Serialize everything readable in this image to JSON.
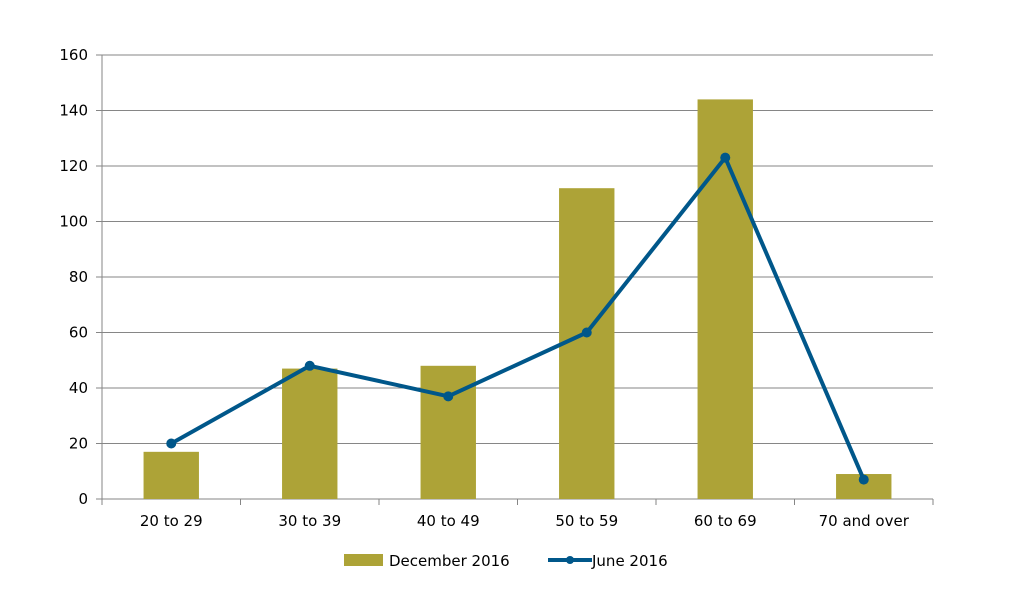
{
  "chart_data": {
    "type": "bar",
    "title": "",
    "xlabel": "",
    "ylabel": "",
    "categories": [
      "20 to 29",
      "30 to 39",
      "40 to 49",
      "50 to 59",
      "60 to 69",
      "70 and over"
    ],
    "ylim": [
      0,
      160
    ],
    "yticks": [
      0,
      20,
      40,
      60,
      80,
      100,
      120,
      140,
      160
    ],
    "grid": true,
    "legend_position": "bottom-center",
    "series": [
      {
        "name": "December 2016",
        "kind": "bar",
        "color": "#ADA337",
        "values": [
          17,
          47,
          48,
          112,
          144,
          9
        ]
      },
      {
        "name": "June 2016",
        "kind": "line",
        "color": "#00578A",
        "values": [
          20,
          48,
          37,
          60,
          123,
          7
        ]
      }
    ]
  }
}
